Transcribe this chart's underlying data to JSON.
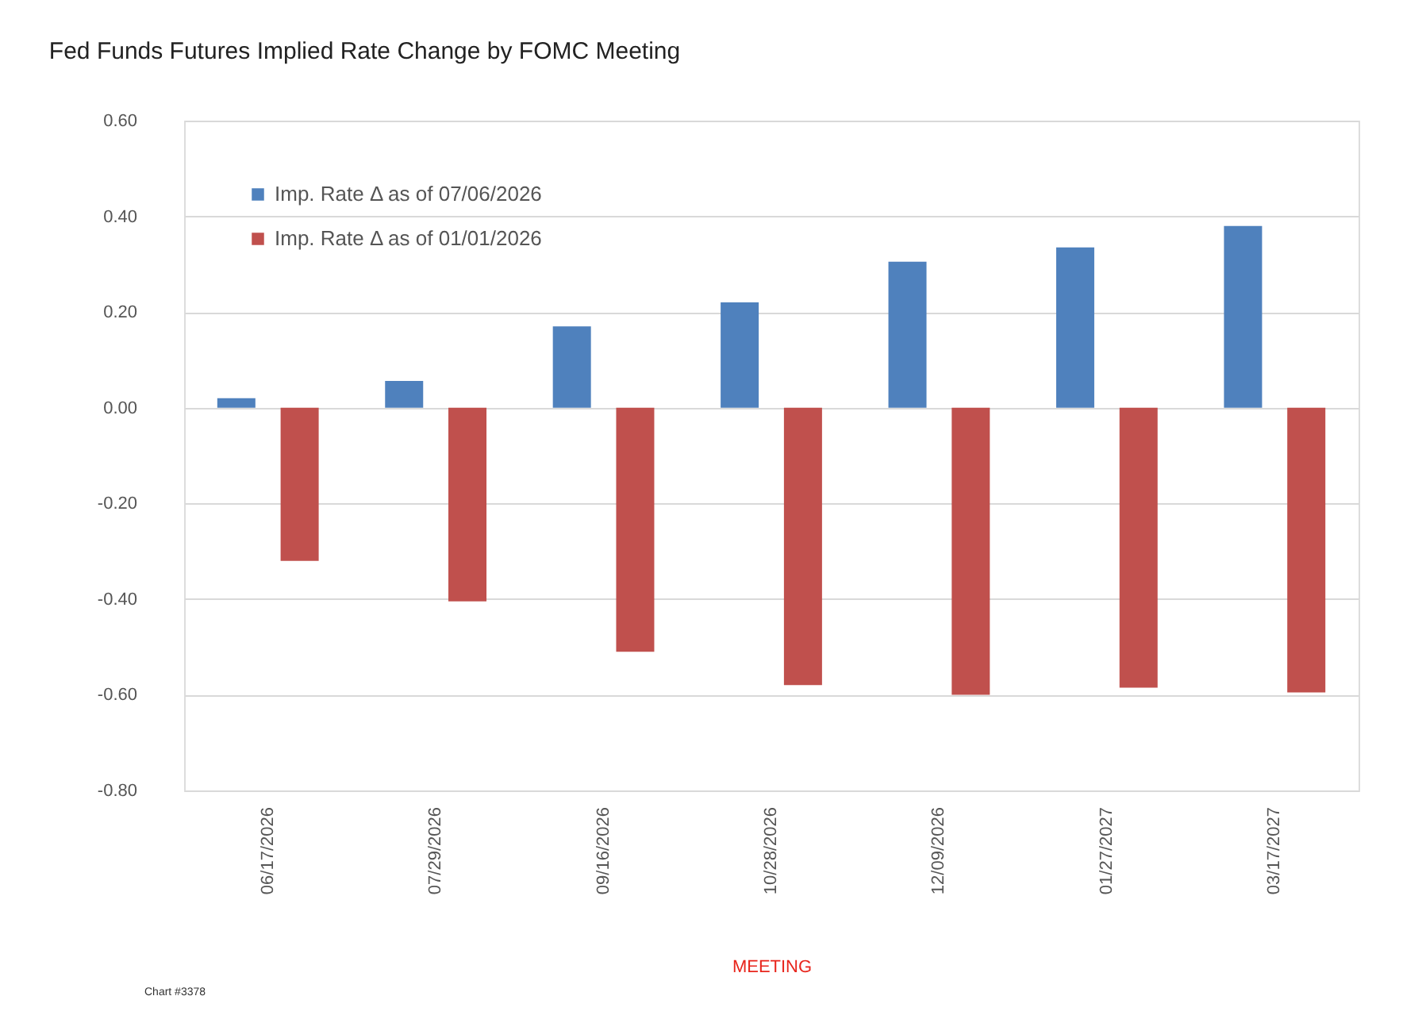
{
  "chart_data": {
    "type": "bar",
    "title": "Fed Funds Futures Implied Rate Change by FOMC Meeting",
    "xlabel": "MEETING",
    "categories": [
      "06/17/2026",
      "07/29/2026",
      "09/16/2026",
      "10/28/2026",
      "12/09/2026",
      "01/27/2027",
      "03/17/2027"
    ],
    "series": [
      {
        "name": "Imp. Rate Δ as of 07/06/2026",
        "color": "#4f81bd",
        "values": [
          0.02,
          0.056,
          0.17,
          0.22,
          0.305,
          0.335,
          0.38
        ]
      },
      {
        "name": "Imp. Rate Δ as of 01/01/2026",
        "color": "#c0504d",
        "values": [
          -0.32,
          -0.405,
          -0.51,
          -0.58,
          -0.6,
          -0.585,
          -0.595
        ]
      }
    ],
    "ylim": [
      -0.8,
      0.6
    ],
    "yticks": [
      {
        "value": -0.8,
        "label": "-0.80"
      },
      {
        "value": -0.6,
        "label": "-0.60"
      },
      {
        "value": -0.4,
        "label": "-0.40"
      },
      {
        "value": -0.2,
        "label": "-0.20"
      },
      {
        "value": 0,
        "label": "0.00"
      },
      {
        "value": 0.2,
        "label": "0.20"
      },
      {
        "value": 0.4,
        "label": "0.40"
      },
      {
        "value": 0.6,
        "label": "0.60"
      }
    ],
    "grid": "y",
    "legend": "top left",
    "annotations": [
      "Chart #3378"
    ]
  }
}
